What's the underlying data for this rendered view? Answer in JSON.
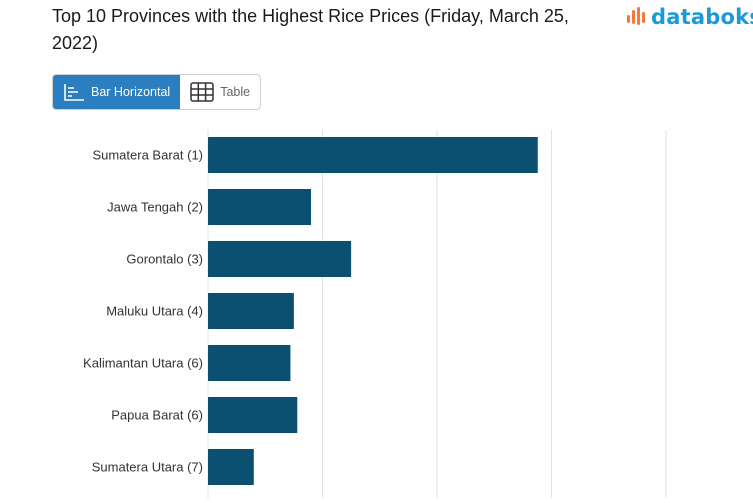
{
  "title": "Top 10 Provinces with the Highest Rice Prices (Friday, March 25, 2022)",
  "brand": {
    "name": "databoks",
    "name_color": "#1a9bd7",
    "mark_color": "#f4793b"
  },
  "toggle": {
    "bar_label": "Bar Horizontal",
    "table_label": "Table",
    "active_color": "#2b7ec0"
  },
  "chart_data": {
    "type": "bar",
    "orientation": "horizontal",
    "categories": [
      "Sumatera Barat (1)",
      "Jawa Tengah (2)",
      "Gorontalo (3)",
      "Maluku Utara (4)",
      "Kalimantan Utara (6)",
      "Papua Barat (6)",
      "Sumatera Utara (7)"
    ],
    "values": [
      14400,
      4500,
      6250,
      3750,
      3600,
      3900,
      2000
    ],
    "xlim": [
      0,
      20000
    ],
    "grid": true,
    "bar_color": "#0b5070"
  }
}
